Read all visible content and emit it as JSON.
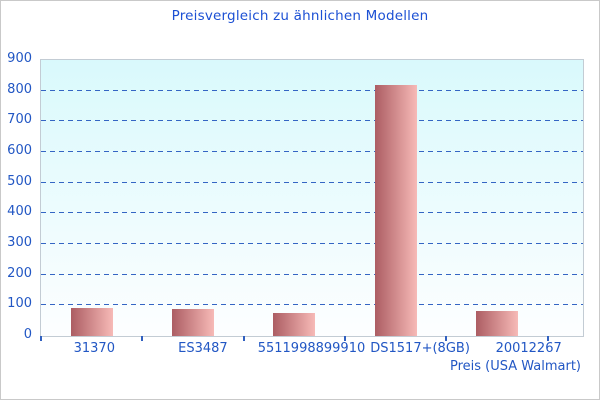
{
  "chart_data": {
    "type": "bar",
    "title": "Preisvergleich zu ähnlichen Modellen",
    "categories": [
      "31370",
      "ES3487",
      "5511998899910",
      "DS1517+(8GB)",
      "20012267"
    ],
    "values": [
      90,
      88,
      75,
      818,
      80
    ],
    "xlabel": "Preis (USA Walmart)",
    "ylabel": "",
    "ylim": [
      0,
      900
    ],
    "ytick_interval": 100,
    "ytick_labels": [
      "0",
      "100",
      "200",
      "300",
      "400",
      "500",
      "600",
      "700",
      "800",
      "900"
    ],
    "grid": "horizontal-dashed",
    "legend": "none",
    "colors": {
      "title_text": "#1c50d4",
      "axis_text": "#2257c4",
      "gridline": "#3465c4",
      "tick_mark": "#3060c0",
      "bar_gradient_left": "#ac5d63",
      "bar_gradient_right": "#f7bab7",
      "plot_bg_top": "#d9f9fc",
      "plot_bg_bottom": "#fdfeff",
      "plot_border": "#c3ccd4",
      "page_border": "#c9c9c9"
    }
  }
}
